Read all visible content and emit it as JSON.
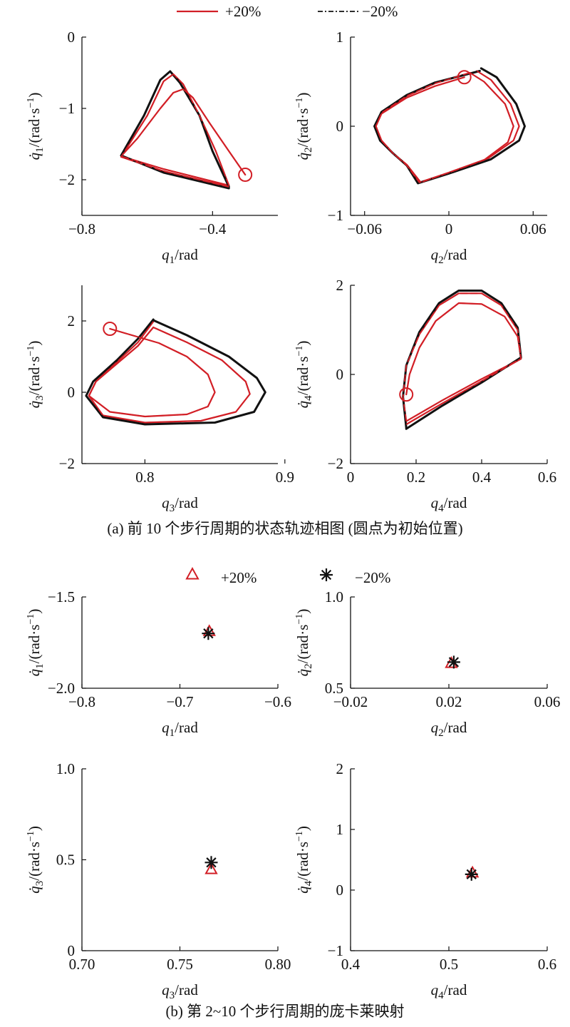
{
  "figure": {
    "caption_a": "(a) 前 10 个步行周期的状态轨迹相图 (圆点为初始位置)",
    "caption_b": "(b) 第 2~10 个步行周期的庞卡莱映射"
  },
  "legend": {
    "a": [
      {
        "label": "+20%",
        "color": "#d21f26",
        "style": "solid"
      },
      {
        "label": "−20%",
        "color": "#111111",
        "style": "dash-dot"
      }
    ],
    "b": [
      {
        "label": "+20%",
        "color": "#d21f26",
        "marker": "triangle"
      },
      {
        "label": "−20%",
        "color": "#111111",
        "marker": "asterisk"
      }
    ]
  },
  "colors": {
    "plus20": "#d21f26",
    "minus20": "#111111"
  },
  "chart_data": [
    {
      "id": "a1",
      "type": "line",
      "panel": "(a)",
      "xlabel": "q1/rad",
      "ylabel": "q̇1/(rad·s⁻¹)",
      "xlim": [
        -0.8,
        -0.2
      ],
      "ylim": [
        -2.5,
        0
      ],
      "xticks": [
        -0.8,
        -0.4
      ],
      "xtick_labels": [
        "−0.8",
        "−0.4"
      ],
      "yticks": [
        0,
        -1,
        -2
      ],
      "ytick_labels": [
        "0",
        "−1",
        "−2"
      ],
      "initial_point": [
        -0.3,
        -1.93
      ],
      "series": [
        {
          "name": "+20%",
          "cycles": [
            [
              [
                -0.3,
                -1.93
              ],
              [
                -0.35,
                -1.6
              ],
              [
                -0.41,
                -1.2
              ],
              [
                -0.46,
                -0.85
              ],
              [
                -0.49,
                -0.73
              ],
              [
                -0.52,
                -0.78
              ],
              [
                -0.56,
                -1.0
              ],
              [
                -0.63,
                -1.42
              ],
              [
                -0.68,
                -1.67
              ],
              [
                -0.55,
                -1.85
              ],
              [
                -0.35,
                -2.08
              ]
            ],
            [
              [
                -0.35,
                -2.08
              ],
              [
                -0.39,
                -1.6
              ],
              [
                -0.44,
                -1.1
              ],
              [
                -0.49,
                -0.66
              ],
              [
                -0.52,
                -0.52
              ],
              [
                -0.55,
                -0.62
              ],
              [
                -0.6,
                -1.1
              ],
              [
                -0.68,
                -1.68
              ],
              [
                -0.55,
                -1.88
              ],
              [
                -0.35,
                -2.1
              ]
            ]
          ]
        },
        {
          "name": "−20%",
          "cycles": [
            [
              [
                -0.35,
                -2.1
              ],
              [
                -0.4,
                -1.6
              ],
              [
                -0.44,
                -1.1
              ],
              [
                -0.5,
                -0.64
              ],
              [
                -0.53,
                -0.48
              ],
              [
                -0.56,
                -0.6
              ],
              [
                -0.61,
                -1.1
              ],
              [
                -0.68,
                -1.66
              ],
              [
                -0.55,
                -1.9
              ],
              [
                -0.35,
                -2.12
              ]
            ]
          ]
        }
      ]
    },
    {
      "id": "a2",
      "type": "line",
      "panel": "(a)",
      "xlabel": "q2/rad",
      "ylabel": "q̇2/(rad·s⁻¹)",
      "xlim": [
        -0.07,
        0.07
      ],
      "ylim": [
        -1,
        1
      ],
      "xticks": [
        -0.06,
        0,
        0.06
      ],
      "xtick_labels": [
        "−0.06",
        "0",
        "0.06"
      ],
      "yticks": [
        1,
        0,
        -1
      ],
      "ytick_labels": [
        "1",
        "0",
        "−1"
      ],
      "initial_point": [
        0.011,
        0.55
      ],
      "series": [
        {
          "name": "+20%",
          "cycles": [
            [
              [
                0.011,
                0.55
              ],
              [
                -0.01,
                0.45
              ],
              [
                -0.03,
                0.32
              ],
              [
                -0.048,
                0.14
              ],
              [
                -0.052,
                0.0
              ],
              [
                -0.048,
                -0.16
              ],
              [
                -0.04,
                -0.3
              ],
              [
                -0.03,
                -0.43
              ],
              [
                -0.02,
                -0.63
              ],
              [
                0.0,
                -0.52
              ],
              [
                0.025,
                -0.38
              ],
              [
                0.042,
                -0.18
              ],
              [
                0.046,
                0.0
              ],
              [
                0.04,
                0.25
              ],
              [
                0.025,
                0.5
              ],
              [
                0.015,
                0.6
              ]
            ],
            [
              [
                0.015,
                0.6
              ],
              [
                -0.01,
                0.48
              ],
              [
                -0.03,
                0.34
              ],
              [
                -0.048,
                0.15
              ],
              [
                -0.052,
                0.0
              ],
              [
                -0.048,
                -0.16
              ],
              [
                -0.04,
                -0.3
              ],
              [
                -0.03,
                -0.44
              ],
              [
                -0.021,
                -0.63
              ],
              [
                0.0,
                -0.52
              ],
              [
                0.028,
                -0.36
              ],
              [
                0.046,
                -0.16
              ],
              [
                0.05,
                0.0
              ],
              [
                0.044,
                0.25
              ],
              [
                0.03,
                0.52
              ],
              [
                0.02,
                0.62
              ]
            ]
          ]
        },
        {
          "name": "−20%",
          "cycles": [
            [
              [
                0.022,
                0.62
              ],
              [
                -0.01,
                0.49
              ],
              [
                -0.03,
                0.35
              ],
              [
                -0.048,
                0.16
              ],
              [
                -0.053,
                0.0
              ],
              [
                -0.049,
                -0.16
              ],
              [
                -0.04,
                -0.3
              ],
              [
                -0.03,
                -0.44
              ],
              [
                -0.022,
                -0.64
              ],
              [
                0.0,
                -0.53
              ],
              [
                0.03,
                -0.37
              ],
              [
                0.05,
                -0.16
              ],
              [
                0.054,
                0.0
              ],
              [
                0.048,
                0.25
              ],
              [
                0.034,
                0.55
              ],
              [
                0.023,
                0.65
              ]
            ]
          ]
        }
      ]
    },
    {
      "id": "a3",
      "type": "line",
      "panel": "(a)",
      "xlabel": "q3/rad",
      "ylabel": "q̇3/(rad·s⁻¹)",
      "xlim": [
        0.755,
        0.895
      ],
      "ylim": [
        -2,
        3
      ],
      "xticks": [
        0.8,
        0.9
      ],
      "xtick_labels": [
        "0.8",
        "0.9"
      ],
      "yticks": [
        2,
        0,
        -2
      ],
      "ytick_labels": [
        "2",
        "0",
        "−2"
      ],
      "initial_point": [
        0.775,
        1.78
      ],
      "series": [
        {
          "name": "+20%",
          "cycles": [
            [
              [
                0.775,
                1.78
              ],
              [
                0.81,
                1.38
              ],
              [
                0.83,
                1.0
              ],
              [
                0.845,
                0.5
              ],
              [
                0.85,
                0.0
              ],
              [
                0.845,
                -0.4
              ],
              [
                0.83,
                -0.62
              ],
              [
                0.8,
                -0.68
              ],
              [
                0.775,
                -0.55
              ],
              [
                0.76,
                -0.1
              ],
              [
                0.765,
                0.3
              ],
              [
                0.78,
                0.8
              ],
              [
                0.795,
                1.3
              ],
              [
                0.806,
                1.82
              ]
            ],
            [
              [
                0.806,
                1.82
              ],
              [
                0.83,
                1.4
              ],
              [
                0.855,
                0.9
              ],
              [
                0.872,
                0.3
              ],
              [
                0.875,
                -0.05
              ],
              [
                0.865,
                -0.55
              ],
              [
                0.84,
                -0.8
              ],
              [
                0.8,
                -0.85
              ],
              [
                0.77,
                -0.65
              ],
              [
                0.76,
                -0.1
              ],
              [
                0.765,
                0.3
              ],
              [
                0.78,
                0.85
              ],
              [
                0.795,
                1.4
              ],
              [
                0.806,
                1.98
              ]
            ]
          ]
        },
        {
          "name": "−20%",
          "cycles": [
            [
              [
                0.806,
                2.02
              ],
              [
                0.83,
                1.6
              ],
              [
                0.86,
                1.0
              ],
              [
                0.88,
                0.4
              ],
              [
                0.886,
                0.0
              ],
              [
                0.878,
                -0.55
              ],
              [
                0.85,
                -0.85
              ],
              [
                0.8,
                -0.9
              ],
              [
                0.77,
                -0.7
              ],
              [
                0.758,
                -0.1
              ],
              [
                0.763,
                0.3
              ],
              [
                0.78,
                0.9
              ],
              [
                0.795,
                1.5
              ],
              [
                0.806,
                2.04
              ]
            ]
          ]
        }
      ]
    },
    {
      "id": "a4",
      "type": "line",
      "panel": "(a)",
      "xlabel": "q4/rad",
      "ylabel": "q̇4/(rad·s⁻¹)",
      "xlim": [
        0,
        0.6
      ],
      "ylim": [
        -2,
        2
      ],
      "xticks": [
        0,
        0.2,
        0.4,
        0.6
      ],
      "xtick_labels": [
        "0",
        "0.2",
        "0.4",
        "0.6"
      ],
      "yticks": [
        2,
        0,
        -2
      ],
      "ytick_labels": [
        "2",
        "0",
        "−2"
      ],
      "initial_point": [
        0.17,
        -0.45
      ],
      "series": [
        {
          "name": "+20%",
          "cycles": [
            [
              [
                0.17,
                -0.45
              ],
              [
                0.18,
                0.0
              ],
              [
                0.21,
                0.6
              ],
              [
                0.26,
                1.2
              ],
              [
                0.33,
                1.6
              ],
              [
                0.4,
                1.58
              ],
              [
                0.47,
                1.3
              ],
              [
                0.51,
                0.85
              ],
              [
                0.52,
                0.35
              ],
              [
                0.4,
                -0.1
              ],
              [
                0.28,
                -0.58
              ],
              [
                0.17,
                -1.05
              ]
            ],
            [
              [
                0.17,
                -1.05
              ],
              [
                0.16,
                -0.5
              ],
              [
                0.17,
                0.2
              ],
              [
                0.21,
                0.9
              ],
              [
                0.27,
                1.55
              ],
              [
                0.33,
                1.82
              ],
              [
                0.4,
                1.82
              ],
              [
                0.46,
                1.55
              ],
              [
                0.51,
                1.0
              ],
              [
                0.52,
                0.35
              ],
              [
                0.4,
                -0.15
              ],
              [
                0.28,
                -0.65
              ],
              [
                0.17,
                -1.12
              ]
            ]
          ]
        },
        {
          "name": "−20%",
          "cycles": [
            [
              [
                0.17,
                -1.2
              ],
              [
                0.16,
                -0.5
              ],
              [
                0.17,
                0.2
              ],
              [
                0.21,
                0.95
              ],
              [
                0.27,
                1.6
              ],
              [
                0.33,
                1.88
              ],
              [
                0.4,
                1.88
              ],
              [
                0.46,
                1.6
              ],
              [
                0.51,
                1.05
              ],
              [
                0.52,
                0.38
              ],
              [
                0.4,
                -0.18
              ],
              [
                0.28,
                -0.7
              ],
              [
                0.17,
                -1.22
              ]
            ]
          ]
        }
      ]
    },
    {
      "id": "b1",
      "type": "scatter",
      "panel": "(b)",
      "xlabel": "q1/rad",
      "ylabel": "q̇1/(rad·s⁻¹)",
      "xlim": [
        -0.8,
        -0.6
      ],
      "ylim": [
        -2.0,
        -1.5
      ],
      "xticks": [
        -0.8,
        -0.7,
        -0.6
      ],
      "xtick_labels": [
        "−0.8",
        "−0.7",
        "−0.6"
      ],
      "yticks": [
        -1.5,
        -2.0
      ],
      "ytick_labels": [
        "−1.5",
        "−2.0"
      ],
      "series": [
        {
          "name": "+20%",
          "marker": "triangle",
          "points": [
            [
              -0.67,
              -1.69
            ]
          ]
        },
        {
          "name": "−20%",
          "marker": "asterisk",
          "points": [
            [
              -0.671,
              -1.7
            ]
          ]
        }
      ]
    },
    {
      "id": "b2",
      "type": "scatter",
      "panel": "(b)",
      "xlabel": "q2/rad",
      "ylabel": "q̇2/(rad·s⁻¹)",
      "xlim": [
        -0.02,
        0.06
      ],
      "ylim": [
        0.5,
        1.0
      ],
      "xticks": [
        -0.02,
        0.02,
        0.06
      ],
      "xtick_labels": [
        "−0.02",
        "0.02",
        "0.06"
      ],
      "yticks": [
        1.0,
        0.5
      ],
      "ytick_labels": [
        "1.0",
        "0.5"
      ],
      "series": [
        {
          "name": "+20%",
          "marker": "triangle",
          "points": [
            [
              0.021,
              0.635
            ]
          ]
        },
        {
          "name": "−20%",
          "marker": "asterisk",
          "points": [
            [
              0.022,
              0.643
            ]
          ]
        }
      ]
    },
    {
      "id": "b3",
      "type": "scatter",
      "panel": "(b)",
      "xlabel": "q3/rad",
      "ylabel": "q̇3/(rad·s⁻¹)",
      "xlim": [
        0.7,
        0.8
      ],
      "ylim": [
        0,
        1.0
      ],
      "xticks": [
        0.7,
        0.75,
        0.8
      ],
      "xtick_labels": [
        "0.70",
        "0.75",
        "0.80"
      ],
      "yticks": [
        1.0,
        0.5,
        0
      ],
      "ytick_labels": [
        "1.0",
        "0.5",
        "0"
      ],
      "series": [
        {
          "name": "+20%",
          "marker": "triangle",
          "points": [
            [
              0.766,
              0.445
            ]
          ]
        },
        {
          "name": "−20%",
          "marker": "asterisk",
          "points": [
            [
              0.766,
              0.485
            ]
          ]
        }
      ]
    },
    {
      "id": "b4",
      "type": "scatter",
      "panel": "(b)",
      "xlabel": "q4/rad",
      "ylabel": "q̇4/(rad·s⁻¹)",
      "xlim": [
        0.4,
        0.6
      ],
      "ylim": [
        -1,
        2
      ],
      "xticks": [
        0.4,
        0.5,
        0.6
      ],
      "xtick_labels": [
        "0.4",
        "0.5",
        "0.6"
      ],
      "yticks": [
        2,
        1,
        0,
        -1
      ],
      "ytick_labels": [
        "2",
        "1",
        "0",
        "−1"
      ],
      "series": [
        {
          "name": "+20%",
          "marker": "triangle",
          "points": [
            [
              0.524,
              0.28
            ]
          ]
        },
        {
          "name": "−20%",
          "marker": "asterisk",
          "points": [
            [
              0.523,
              0.26
            ]
          ]
        }
      ]
    }
  ]
}
